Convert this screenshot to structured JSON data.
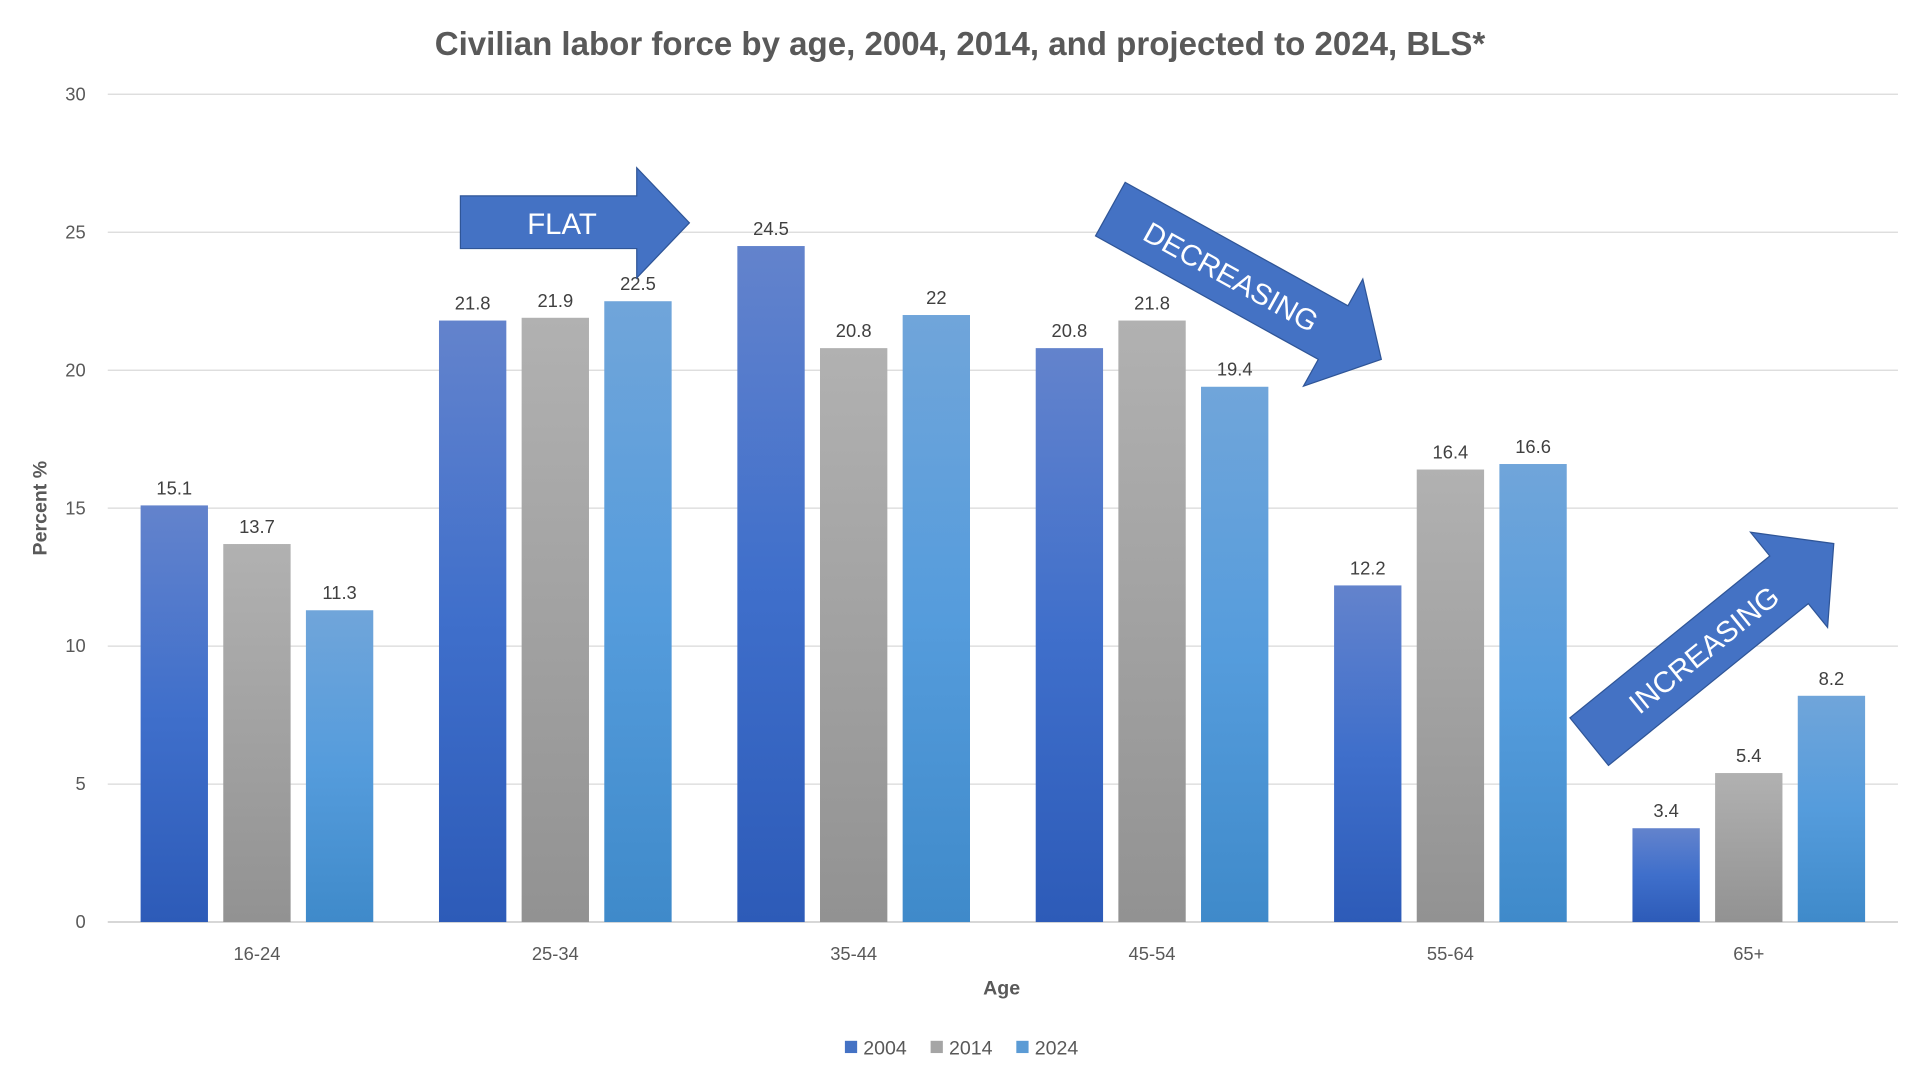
{
  "chart_data": {
    "type": "bar",
    "title": "Civilian labor force by age, 2004, 2014, and projected to 2024, BLS*",
    "xlabel": "Age",
    "ylabel": "Percent %",
    "ylim": [
      0,
      30
    ],
    "yticks": [
      0,
      5,
      10,
      15,
      20,
      25,
      30
    ],
    "grid": true,
    "legend_position": "bottom",
    "categories": [
      "16-24",
      "25-34",
      "35-44",
      "45-54",
      "55-64",
      "65+"
    ],
    "series": [
      {
        "name": "2004",
        "values": [
          15.1,
          21.8,
          24.5,
          20.8,
          12.2,
          3.4
        ],
        "color": "#4472C4"
      },
      {
        "name": "2014",
        "values": [
          13.7,
          21.9,
          20.8,
          21.8,
          16.4,
          5.4
        ],
        "color": "#A5A5A5"
      },
      {
        "name": "2024",
        "values": [
          11.3,
          22.5,
          22,
          19.4,
          16.6,
          8.2
        ],
        "color": "#5B9BD5"
      }
    ],
    "data_labels": [
      [
        "15.1",
        "21.8",
        "24.5",
        "20.8",
        "12.2",
        "3.4"
      ],
      [
        "13.7",
        "21.9",
        "20.8",
        "21.8",
        "16.4",
        "5.4"
      ],
      [
        "11.3",
        "22.5",
        "22",
        "19.4",
        "16.6",
        "8.2"
      ]
    ],
    "annotations": [
      {
        "text": "FLAT",
        "direction": "right"
      },
      {
        "text": "DECREASING",
        "direction": "down-right"
      },
      {
        "text": "INCREASING",
        "direction": "up-right"
      }
    ]
  }
}
